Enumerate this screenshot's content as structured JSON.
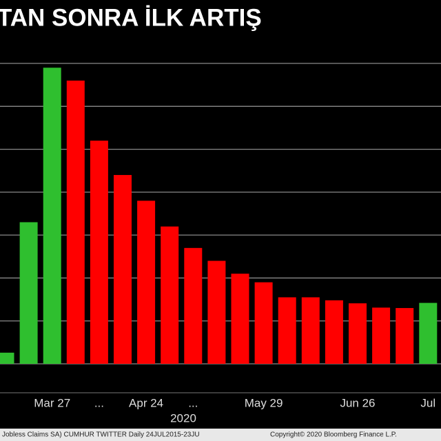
{
  "chart_data": {
    "type": "bar",
    "title": "TAN SONRA İLK ARTIŞ",
    "categories": [
      null,
      null,
      "Mar 27",
      null,
      "...",
      null,
      "Apr 24",
      null,
      "...",
      null,
      null,
      "May 29",
      null,
      null,
      null,
      "Jun 26",
      null,
      null,
      "Jul"
    ],
    "values": [
      0.26,
      3.3,
      6.9,
      6.6,
      5.2,
      4.4,
      3.8,
      3.2,
      2.7,
      2.4,
      2.1,
      1.9,
      1.55,
      1.55,
      1.48,
      1.41,
      1.31,
      1.3,
      1.42
    ],
    "colors": [
      "#2fbf2f",
      "#2fbf2f",
      "#2fbf2f",
      "#ff0000",
      "#ff0000",
      "#ff0000",
      "#ff0000",
      "#ff0000",
      "#ff0000",
      "#ff0000",
      "#ff0000",
      "#ff0000",
      "#ff0000",
      "#ff0000",
      "#ff0000",
      "#ff0000",
      "#ff0000",
      "#ff0000",
      "#2fbf2f"
    ],
    "ylim": [
      0,
      7.1
    ],
    "yticks": [
      0,
      1,
      2,
      3,
      4,
      5,
      6,
      7
    ],
    "grid": true,
    "year_label": "2020",
    "footer_left": "l Jobless Claims SA) CUMHUR TWITTER  Daily 24JUL2015-23JU",
    "footer_right": "Copyright© 2020 Bloomberg Finance L.P."
  }
}
